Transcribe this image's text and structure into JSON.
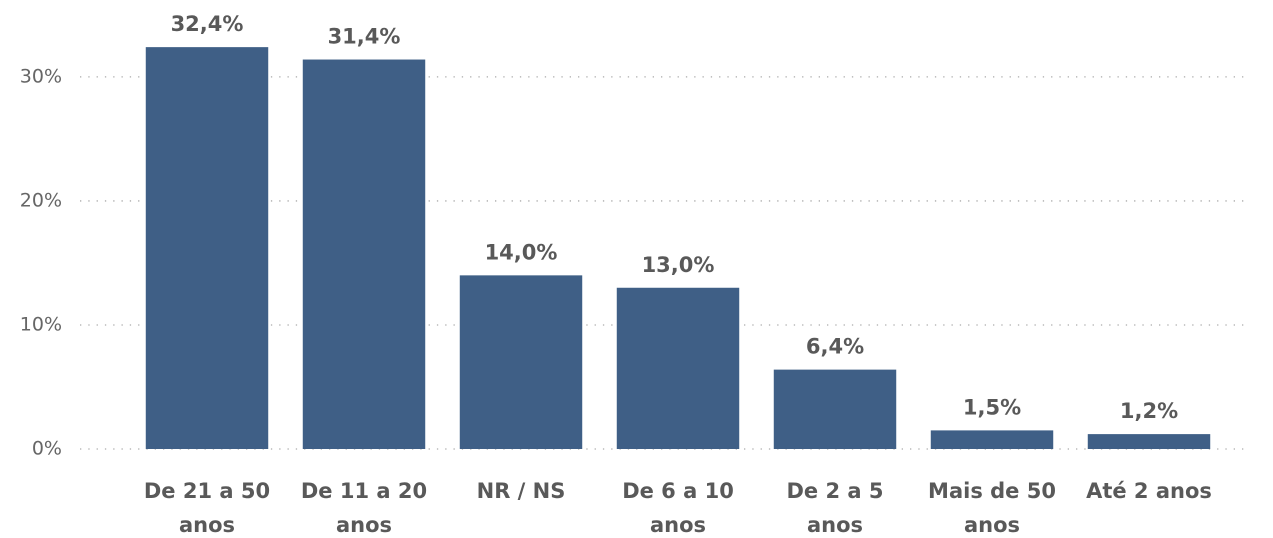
{
  "chart_data": {
    "type": "bar",
    "categories": [
      "De 21 a 50 anos",
      "De 11 a 20 anos",
      "NR / NS",
      "De 6 a 10 anos",
      "De 2 a 5 anos",
      "Mais de 50 anos",
      "Até 2 anos"
    ],
    "values": [
      32.4,
      31.4,
      14.0,
      13.0,
      6.4,
      1.5,
      1.2
    ],
    "value_labels": [
      "32,4%",
      "31,4%",
      "14,0%",
      "13,0%",
      "6,4%",
      "1,5%",
      "1,2%"
    ],
    "color": "#3f5f86",
    "ylim": [
      0,
      36.2
    ],
    "yticks": [
      {
        "value": 0,
        "label": "0%"
      },
      {
        "value": 10,
        "label": "10%"
      },
      {
        "value": 20,
        "label": "20%"
      },
      {
        "value": 30,
        "label": "30%"
      }
    ],
    "grid": true
  }
}
